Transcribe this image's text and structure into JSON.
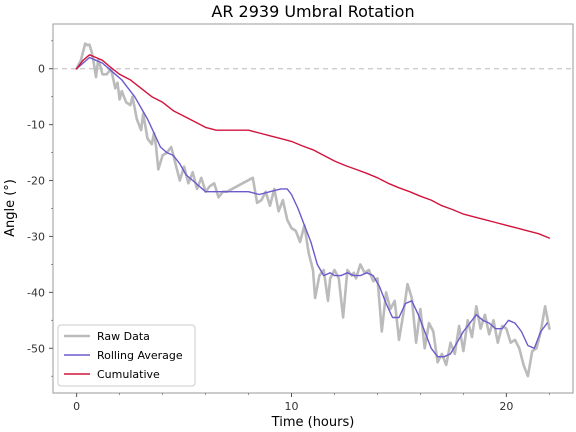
{
  "chart_data": {
    "type": "line",
    "title": "AR 2939 Umbral Rotation",
    "xlabel": "Time (hours)",
    "ylabel": "Angle (°)",
    "xlim": [
      -1.1,
      23.1
    ],
    "ylim": [
      -58,
      8
    ],
    "xticks": [
      0,
      10,
      20
    ],
    "yticks": [
      0,
      -10,
      -20,
      -30,
      -40,
      -50
    ],
    "grid": false,
    "reference_line": {
      "y": 0,
      "style": "dashed",
      "color": "#c8c8c8"
    },
    "legend": {
      "placement": "lower-left"
    },
    "series": [
      {
        "name": "Raw Data",
        "color": "#bbbbbb",
        "x": [
          0,
          0.2,
          0.4,
          0.5,
          0.6,
          0.7,
          0.8,
          0.9,
          1.0,
          1.1,
          1.2,
          1.4,
          1.6,
          1.8,
          1.9,
          2.0,
          2.1,
          2.3,
          2.5,
          2.6,
          2.8,
          3.0,
          3.1,
          3.3,
          3.5,
          3.6,
          3.7,
          3.8,
          4.0,
          4.2,
          4.4,
          4.6,
          4.8,
          5.0,
          5.2,
          5.4,
          5.6,
          5.8,
          6.0,
          6.2,
          6.4,
          6.6,
          6.8,
          7.0,
          8.2,
          8.4,
          8.6,
          8.8,
          9.0,
          9.2,
          9.4,
          9.6,
          9.8,
          10.0,
          10.2,
          10.4,
          10.6,
          10.8,
          11.0,
          11.1,
          11.3,
          11.5,
          11.7,
          11.8,
          12.0,
          12.2,
          12.4,
          12.6,
          12.8,
          12.9,
          13.0,
          13.2,
          13.4,
          13.6,
          13.8,
          14.0,
          14.2,
          14.4,
          14.6,
          14.8,
          15.0,
          15.2,
          15.4,
          15.6,
          15.8,
          16.0,
          16.2,
          16.4,
          16.6,
          16.8,
          17.0,
          17.2,
          17.4,
          17.6,
          17.8,
          18.0,
          18.2,
          18.4,
          18.6,
          18.8,
          19.0,
          19.2,
          19.4,
          19.6,
          19.8,
          20.0,
          20.2,
          20.4,
          20.6,
          20.8,
          21.0,
          21.2,
          21.4,
          21.6,
          21.8,
          22.0
        ],
        "values": [
          0,
          1.5,
          4.5,
          4.2,
          4.3,
          3.0,
          1.0,
          -1.5,
          1.5,
          0.5,
          -1.0,
          -1.0,
          0.0,
          -3.5,
          -2.5,
          -5.5,
          -4.0,
          -6.0,
          -6.5,
          -5.0,
          -9.0,
          -11.0,
          -8.0,
          -12.5,
          -13.5,
          -11.5,
          -14.0,
          -18.0,
          -15.5,
          -15.0,
          -14.0,
          -17.0,
          -20.0,
          -17.5,
          -20.5,
          -18.5,
          -21.5,
          -19.5,
          -22.0,
          -21.0,
          -20.5,
          -23.0,
          -22.0,
          -22.0,
          -19.5,
          -24.0,
          -23.5,
          -22.0,
          -24.5,
          -21.5,
          -25.5,
          -23.5,
          -27.0,
          -28.5,
          -29.0,
          -31.0,
          -28.0,
          -33.0,
          -36.0,
          -41.0,
          -37.0,
          -36.0,
          -41.5,
          -37.5,
          -36.0,
          -37.5,
          -44.5,
          -36.0,
          -37.0,
          -36.5,
          -37.5,
          -35.0,
          -36.5,
          -36.0,
          -38.0,
          -37.5,
          -47.0,
          -40.0,
          -43.0,
          -41.5,
          -48.5,
          -44.0,
          -38.5,
          -41.0,
          -49.0,
          -43.0,
          -50.0,
          -45.5,
          -47.0,
          -52.5,
          -51.0,
          -53.0,
          -49.0,
          -51.0,
          -46.0,
          -50.5,
          -45.0,
          -48.0,
          -42.5,
          -46.5,
          -44.0,
          -47.5,
          -45.0,
          -49.0,
          -46.0,
          -46.5,
          -49.0,
          -48.5,
          -50.0,
          -53.0,
          -55.0,
          -50.5,
          -50.0,
          -47.0,
          -42.5,
          -46.5
        ]
      },
      {
        "name": "Rolling Average",
        "color": "#6a5acd",
        "x": [
          0,
          0.3,
          0.6,
          0.9,
          1.2,
          1.5,
          1.8,
          2.1,
          2.4,
          2.7,
          3.0,
          3.3,
          3.6,
          3.9,
          4.2,
          4.5,
          4.8,
          5.1,
          5.4,
          5.7,
          6.0,
          6.5,
          7.0,
          8.0,
          8.5,
          9.0,
          9.5,
          9.8,
          10.0,
          10.3,
          10.6,
          10.9,
          11.2,
          11.5,
          11.8,
          12.0,
          12.3,
          12.6,
          12.9,
          13.2,
          13.5,
          13.8,
          14.1,
          14.4,
          14.7,
          15.0,
          15.3,
          15.6,
          15.9,
          16.2,
          16.5,
          16.8,
          17.1,
          17.4,
          17.7,
          18.0,
          18.3,
          18.6,
          18.9,
          19.2,
          19.5,
          19.8,
          20.1,
          20.4,
          20.7,
          21.0,
          21.3,
          21.6,
          21.9
        ],
        "values": [
          0,
          1.0,
          2.0,
          1.5,
          1.0,
          0,
          -1.0,
          -2.0,
          -3.5,
          -5.0,
          -7.0,
          -9.0,
          -11.5,
          -14.0,
          -15.0,
          -15.5,
          -17.0,
          -19.0,
          -20.0,
          -21.0,
          -22.0,
          -22.0,
          -22.0,
          -22.0,
          -22.5,
          -22.0,
          -21.5,
          -21.5,
          -22.5,
          -25.0,
          -28.0,
          -31.0,
          -35.0,
          -37.0,
          -36.5,
          -37.0,
          -37.0,
          -36.5,
          -37.0,
          -37.0,
          -36.5,
          -37.0,
          -39.0,
          -42.0,
          -44.5,
          -44.5,
          -42.0,
          -41.5,
          -44.0,
          -47.0,
          -50.0,
          -51.5,
          -51.5,
          -51.0,
          -49.0,
          -47.0,
          -45.5,
          -44.0,
          -45.0,
          -45.5,
          -46.5,
          -46.5,
          -45.0,
          -45.5,
          -47.0,
          -49.5,
          -50.0,
          -47.0,
          -45.5
        ]
      },
      {
        "name": "Cumulative",
        "color": "#d2143c",
        "x": [
          0,
          0.3,
          0.6,
          0.9,
          1.2,
          1.5,
          2.0,
          2.5,
          3.0,
          3.5,
          4.0,
          4.5,
          5.0,
          5.5,
          6.0,
          6.5,
          7.0,
          8.0,
          8.5,
          9.0,
          9.5,
          10.0,
          10.5,
          11.0,
          11.5,
          12.0,
          12.5,
          13.0,
          13.5,
          14.0,
          14.5,
          15.0,
          15.5,
          16.0,
          16.5,
          17.0,
          17.5,
          18.0,
          18.5,
          19.0,
          19.5,
          20.0,
          20.5,
          21.0,
          21.5,
          22.0
        ],
        "values": [
          0,
          1.5,
          2.5,
          2.0,
          1.5,
          0.5,
          -1.0,
          -2.0,
          -3.5,
          -5.0,
          -6.0,
          -7.5,
          -8.5,
          -9.5,
          -10.5,
          -11.0,
          -11.0,
          -11.0,
          -11.5,
          -12.0,
          -12.5,
          -13.0,
          -13.8,
          -14.5,
          -15.5,
          -16.5,
          -17.3,
          -18.0,
          -18.7,
          -19.5,
          -20.5,
          -21.3,
          -22.0,
          -22.8,
          -23.5,
          -24.5,
          -25.2,
          -26.0,
          -26.5,
          -27.0,
          -27.5,
          -28.0,
          -28.5,
          -29.0,
          -29.5,
          -30.3
        ]
      }
    ]
  }
}
